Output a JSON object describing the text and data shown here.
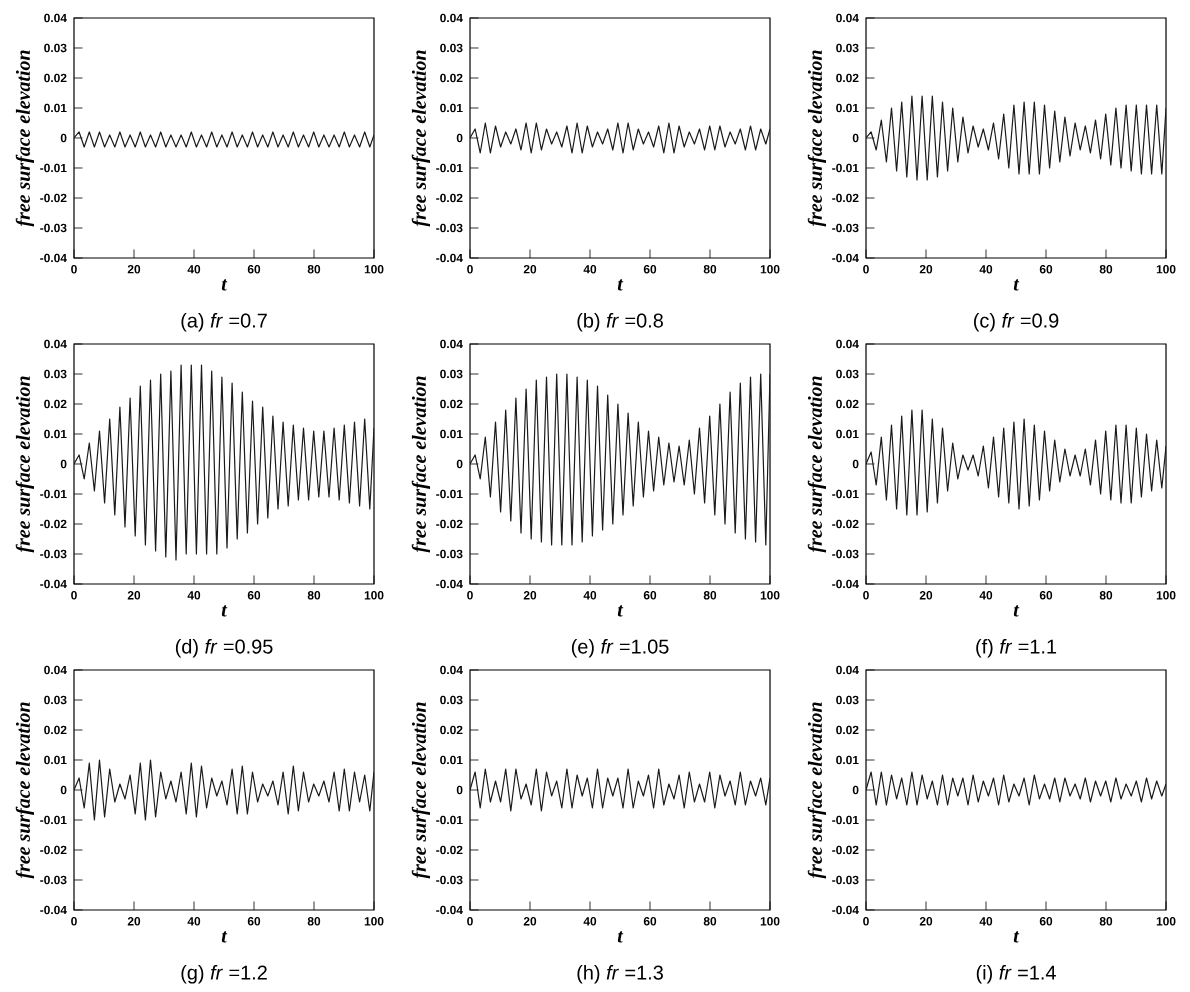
{
  "chart_data": [
    {
      "type": "line",
      "color": "#1a1a1a",
      "xlabel": "t",
      "ylabel": "free surface elevation",
      "annotations": [
        "(a) *fr* =0.7"
      ],
      "xlim": [
        0,
        100
      ],
      "ylim": [
        -0.04,
        0.04
      ],
      "xticks": [
        0,
        20,
        40,
        60,
        80,
        100
      ],
      "yticks": [
        -0.04,
        -0.03,
        -0.02,
        -0.01,
        0,
        0.01,
        0.02,
        0.03,
        0.04
      ],
      "x": [
        0,
        1.7,
        3.4,
        5.1,
        6.8,
        8.5,
        10.2,
        11.9,
        13.6,
        15.3,
        17,
        18.7,
        20.4,
        22.1,
        23.8,
        25.5,
        27.2,
        28.9,
        30.6,
        32.3,
        34,
        35.7,
        37.4,
        39.1,
        40.8,
        42.5,
        44.2,
        45.9,
        47.6,
        49.3,
        51,
        52.7,
        54.4,
        56.1,
        57.8,
        59.5,
        61.2,
        62.9,
        64.6,
        66.3,
        68,
        69.7,
        71.4,
        73.1,
        74.8,
        76.5,
        78.2,
        79.9,
        81.6,
        83.3,
        85,
        86.7,
        88.4,
        90.1,
        91.8,
        93.5,
        95.2,
        96.9,
        98.6,
        100
      ],
      "values": [
        0,
        0.002,
        -0.003,
        0.002,
        -0.003,
        0.002,
        -0.003,
        0.001,
        -0.003,
        0.002,
        -0.003,
        0.001,
        -0.003,
        0.002,
        -0.003,
        0.001,
        -0.003,
        0.002,
        -0.003,
        0.001,
        -0.003,
        0.001,
        -0.003,
        0.002,
        -0.003,
        0.001,
        -0.003,
        0.002,
        -0.003,
        0.001,
        -0.003,
        0.002,
        -0.003,
        0.001,
        -0.003,
        0.002,
        -0.003,
        0.001,
        -0.003,
        0.002,
        -0.003,
        0.001,
        -0.003,
        0.002,
        -0.003,
        0.001,
        -0.003,
        0.002,
        -0.003,
        0.001,
        -0.003,
        0.001,
        -0.003,
        0.002,
        -0.003,
        0.001,
        -0.003,
        0.002,
        -0.003,
        0.001
      ]
    },
    {
      "type": "line",
      "color": "#1a1a1a",
      "xlabel": "t",
      "ylabel": "free surface elevation",
      "annotations": [
        "(b) *fr* =0.8"
      ],
      "xlim": [
        0,
        100
      ],
      "ylim": [
        -0.04,
        0.04
      ],
      "xticks": [
        0,
        20,
        40,
        60,
        80,
        100
      ],
      "yticks": [
        -0.04,
        -0.03,
        -0.02,
        -0.01,
        0,
        0.01,
        0.02,
        0.03,
        0.04
      ],
      "x": [
        0,
        1.7,
        3.4,
        5.1,
        6.8,
        8.5,
        10.2,
        11.9,
        13.6,
        15.3,
        17,
        18.7,
        20.4,
        22.1,
        23.8,
        25.5,
        27.2,
        28.9,
        30.6,
        32.3,
        34,
        35.7,
        37.4,
        39.1,
        40.8,
        42.5,
        44.2,
        45.9,
        47.6,
        49.3,
        51,
        52.7,
        54.4,
        56.1,
        57.8,
        59.5,
        61.2,
        62.9,
        64.6,
        66.3,
        68,
        69.7,
        71.4,
        73.1,
        74.8,
        76.5,
        78.2,
        79.9,
        81.6,
        83.3,
        85,
        86.7,
        88.4,
        90.1,
        91.8,
        93.5,
        95.2,
        96.9,
        98.6,
        100
      ],
      "values": [
        0,
        0.003,
        -0.005,
        0.005,
        -0.005,
        0.004,
        -0.003,
        0.002,
        -0.002,
        0.003,
        -0.004,
        0.005,
        -0.005,
        0.005,
        -0.004,
        0.003,
        -0.002,
        0.002,
        -0.003,
        0.004,
        -0.005,
        0.005,
        -0.005,
        0.004,
        -0.003,
        0.002,
        -0.002,
        0.003,
        -0.004,
        0.005,
        -0.005,
        0.005,
        -0.004,
        0.003,
        -0.002,
        0.002,
        -0.003,
        0.004,
        -0.005,
        0.005,
        -0.005,
        0.004,
        -0.003,
        0.002,
        -0.002,
        0.003,
        -0.004,
        0.004,
        -0.004,
        0.004,
        -0.003,
        0.002,
        -0.002,
        0.003,
        -0.004,
        0.004,
        -0.004,
        0.003,
        -0.002,
        0.003
      ]
    },
    {
      "type": "line",
      "color": "#1a1a1a",
      "xlabel": "t",
      "ylabel": "free surface elevation",
      "annotations": [
        "(c) *fr* =0.9"
      ],
      "xlim": [
        0,
        100
      ],
      "ylim": [
        -0.04,
        0.04
      ],
      "xticks": [
        0,
        20,
        40,
        60,
        80,
        100
      ],
      "yticks": [
        -0.04,
        -0.03,
        -0.02,
        -0.01,
        0,
        0.01,
        0.02,
        0.03,
        0.04
      ],
      "x": [
        0,
        1.7,
        3.4,
        5.1,
        6.8,
        8.5,
        10.2,
        11.9,
        13.6,
        15.3,
        17,
        18.7,
        20.4,
        22.1,
        23.8,
        25.5,
        27.2,
        28.9,
        30.6,
        32.3,
        34,
        35.7,
        37.4,
        39.1,
        40.8,
        42.5,
        44.2,
        45.9,
        47.6,
        49.3,
        51,
        52.7,
        54.4,
        56.1,
        57.8,
        59.5,
        61.2,
        62.9,
        64.6,
        66.3,
        68,
        69.7,
        71.4,
        73.1,
        74.8,
        76.5,
        78.2,
        79.9,
        81.6,
        83.3,
        85,
        86.7,
        88.4,
        90.1,
        91.8,
        93.5,
        95.2,
        96.9,
        98.6,
        100
      ],
      "values": [
        0,
        0.002,
        -0.004,
        0.006,
        -0.008,
        0.01,
        -0.011,
        0.012,
        -0.013,
        0.014,
        -0.014,
        0.014,
        -0.014,
        0.014,
        -0.013,
        0.012,
        -0.011,
        0.01,
        -0.008,
        0.007,
        -0.005,
        0.004,
        -0.003,
        0.003,
        -0.004,
        0.005,
        -0.007,
        0.008,
        -0.01,
        0.011,
        -0.012,
        0.012,
        -0.012,
        0.012,
        -0.012,
        0.011,
        -0.01,
        0.009,
        -0.008,
        0.007,
        -0.006,
        0.005,
        -0.004,
        0.004,
        -0.005,
        0.006,
        -0.007,
        0.008,
        -0.009,
        0.01,
        -0.01,
        0.011,
        -0.011,
        0.011,
        -0.012,
        0.011,
        -0.012,
        0.011,
        -0.012,
        0.01
      ]
    },
    {
      "type": "line",
      "color": "#1a1a1a",
      "xlabel": "t",
      "ylabel": "free surface elevation",
      "annotations": [
        "(d) *fr* =0.95"
      ],
      "xlim": [
        0,
        100
      ],
      "ylim": [
        -0.04,
        0.04
      ],
      "xticks": [
        0,
        20,
        40,
        60,
        80,
        100
      ],
      "yticks": [
        -0.04,
        -0.03,
        -0.02,
        -0.01,
        0,
        0.01,
        0.02,
        0.03,
        0.04
      ],
      "x": [
        0,
        1.7,
        3.4,
        5.1,
        6.8,
        8.5,
        10.2,
        11.9,
        13.6,
        15.3,
        17,
        18.7,
        20.4,
        22.1,
        23.8,
        25.5,
        27.2,
        28.9,
        30.6,
        32.3,
        34,
        35.7,
        37.4,
        39.1,
        40.8,
        42.5,
        44.2,
        45.9,
        47.6,
        49.3,
        51,
        52.7,
        54.4,
        56.1,
        57.8,
        59.5,
        61.2,
        62.9,
        64.6,
        66.3,
        68,
        69.7,
        71.4,
        73.1,
        74.8,
        76.5,
        78.2,
        79.9,
        81.6,
        83.3,
        85,
        86.7,
        88.4,
        90.1,
        91.8,
        93.5,
        95.2,
        96.9,
        98.6,
        100
      ],
      "values": [
        0,
        0.003,
        -0.005,
        0.007,
        -0.009,
        0.011,
        -0.013,
        0.015,
        -0.017,
        0.019,
        -0.021,
        0.022,
        -0.024,
        0.026,
        -0.027,
        0.028,
        -0.029,
        0.03,
        -0.031,
        0.031,
        -0.032,
        0.033,
        -0.03,
        0.033,
        -0.03,
        0.033,
        -0.03,
        0.031,
        -0.03,
        0.029,
        -0.028,
        0.027,
        -0.025,
        0.024,
        -0.023,
        0.021,
        -0.02,
        0.019,
        -0.018,
        0.016,
        -0.015,
        0.014,
        -0.014,
        0.013,
        -0.012,
        0.012,
        -0.012,
        0.011,
        -0.011,
        0.011,
        -0.011,
        0.012,
        -0.012,
        0.013,
        -0.013,
        0.014,
        -0.014,
        0.015,
        -0.015,
        0.012
      ]
    },
    {
      "type": "line",
      "color": "#1a1a1a",
      "xlabel": "t",
      "ylabel": "free surface elevation",
      "annotations": [
        "(e) *fr* =1.05"
      ],
      "xlim": [
        0,
        100
      ],
      "ylim": [
        -0.04,
        0.04
      ],
      "xticks": [
        0,
        20,
        40,
        60,
        80,
        100
      ],
      "yticks": [
        -0.04,
        -0.03,
        -0.02,
        -0.01,
        0,
        0.01,
        0.02,
        0.03,
        0.04
      ],
      "x": [
        0,
        1.7,
        3.4,
        5.1,
        6.8,
        8.5,
        10.2,
        11.9,
        13.6,
        15.3,
        17,
        18.7,
        20.4,
        22.1,
        23.8,
        25.5,
        27.2,
        28.9,
        30.6,
        32.3,
        34,
        35.7,
        37.4,
        39.1,
        40.8,
        42.5,
        44.2,
        45.9,
        47.6,
        49.3,
        51,
        52.7,
        54.4,
        56.1,
        57.8,
        59.5,
        61.2,
        62.9,
        64.6,
        66.3,
        68,
        69.7,
        71.4,
        73.1,
        74.8,
        76.5,
        78.2,
        79.9,
        81.6,
        83.3,
        85,
        86.7,
        88.4,
        90.1,
        91.8,
        93.5,
        95.2,
        96.9,
        98.6,
        100
      ],
      "values": [
        0,
        0.003,
        -0.005,
        0.009,
        -0.011,
        0.014,
        -0.016,
        0.018,
        -0.019,
        0.022,
        -0.023,
        0.025,
        -0.025,
        0.028,
        -0.026,
        0.029,
        -0.027,
        0.03,
        -0.027,
        0.03,
        -0.027,
        0.029,
        -0.026,
        0.028,
        -0.024,
        0.026,
        -0.022,
        0.023,
        -0.02,
        0.02,
        -0.017,
        0.017,
        -0.014,
        0.014,
        -0.011,
        0.011,
        -0.009,
        0.009,
        -0.007,
        0.007,
        -0.006,
        0.006,
        -0.007,
        0.008,
        -0.01,
        0.012,
        -0.013,
        0.016,
        -0.017,
        0.02,
        -0.02,
        0.024,
        -0.023,
        0.027,
        -0.025,
        0.029,
        -0.026,
        0.03,
        -0.027,
        0.03
      ]
    },
    {
      "type": "line",
      "color": "#1a1a1a",
      "xlabel": "t",
      "ylabel": "free surface elevation",
      "annotations": [
        "(f) *fr* =1.1"
      ],
      "xlim": [
        0,
        100
      ],
      "ylim": [
        -0.04,
        0.04
      ],
      "xticks": [
        0,
        20,
        40,
        60,
        80,
        100
      ],
      "yticks": [
        -0.04,
        -0.03,
        -0.02,
        -0.01,
        0,
        0.01,
        0.02,
        0.03,
        0.04
      ],
      "x": [
        0,
        1.7,
        3.4,
        5.1,
        6.8,
        8.5,
        10.2,
        11.9,
        13.6,
        15.3,
        17,
        18.7,
        20.4,
        22.1,
        23.8,
        25.5,
        27.2,
        28.9,
        30.6,
        32.3,
        34,
        35.7,
        37.4,
        39.1,
        40.8,
        42.5,
        44.2,
        45.9,
        47.6,
        49.3,
        51,
        52.7,
        54.4,
        56.1,
        57.8,
        59.5,
        61.2,
        62.9,
        64.6,
        66.3,
        68,
        69.7,
        71.4,
        73.1,
        74.8,
        76.5,
        78.2,
        79.9,
        81.6,
        83.3,
        85,
        86.7,
        88.4,
        90.1,
        91.8,
        93.5,
        95.2,
        96.9,
        98.6,
        100
      ],
      "values": [
        0,
        0.004,
        -0.007,
        0.009,
        -0.012,
        0.013,
        -0.015,
        0.016,
        -0.017,
        0.018,
        -0.017,
        0.018,
        -0.016,
        0.015,
        -0.013,
        0.012,
        -0.009,
        0.007,
        -0.005,
        0.003,
        -0.002,
        0.003,
        -0.004,
        0.006,
        -0.008,
        0.009,
        -0.011,
        0.012,
        -0.013,
        0.014,
        -0.015,
        0.015,
        -0.014,
        0.013,
        -0.012,
        0.011,
        -0.009,
        0.008,
        -0.006,
        0.005,
        -0.004,
        0.003,
        -0.004,
        0.005,
        -0.007,
        0.008,
        -0.01,
        0.011,
        -0.012,
        0.013,
        -0.013,
        0.013,
        -0.013,
        0.012,
        -0.011,
        0.01,
        -0.009,
        0.008,
        -0.008,
        0.006
      ]
    },
    {
      "type": "line",
      "color": "#1a1a1a",
      "xlabel": "t",
      "ylabel": "free surface elevation",
      "annotations": [
        "(g) *fr* =1.2"
      ],
      "xlim": [
        0,
        100
      ],
      "ylim": [
        -0.04,
        0.04
      ],
      "xticks": [
        0,
        20,
        40,
        60,
        80,
        100
      ],
      "yticks": [
        -0.04,
        -0.03,
        -0.02,
        -0.01,
        0,
        0.01,
        0.02,
        0.03,
        0.04
      ],
      "x": [
        0,
        1.7,
        3.4,
        5.1,
        6.8,
        8.5,
        10.2,
        11.9,
        13.6,
        15.3,
        17,
        18.7,
        20.4,
        22.1,
        23.8,
        25.5,
        27.2,
        28.9,
        30.6,
        32.3,
        34,
        35.7,
        37.4,
        39.1,
        40.8,
        42.5,
        44.2,
        45.9,
        47.6,
        49.3,
        51,
        52.7,
        54.4,
        56.1,
        57.8,
        59.5,
        61.2,
        62.9,
        64.6,
        66.3,
        68,
        69.7,
        71.4,
        73.1,
        74.8,
        76.5,
        78.2,
        79.9,
        81.6,
        83.3,
        85,
        86.7,
        88.4,
        90.1,
        91.8,
        93.5,
        95.2,
        96.9,
        98.6,
        100
      ],
      "values": [
        0,
        0.004,
        -0.006,
        0.009,
        -0.01,
        0.01,
        -0.009,
        0.007,
        -0.004,
        0.002,
        -0.003,
        0.005,
        -0.008,
        0.009,
        -0.01,
        0.01,
        -0.009,
        0.006,
        -0.003,
        0.003,
        -0.004,
        0.006,
        -0.008,
        0.009,
        -0.009,
        0.008,
        -0.006,
        0.004,
        -0.002,
        0.003,
        -0.005,
        0.007,
        -0.008,
        0.008,
        -0.008,
        0.006,
        -0.004,
        0.002,
        -0.002,
        0.003,
        -0.005,
        0.006,
        -0.008,
        0.008,
        -0.007,
        0.006,
        -0.004,
        0.002,
        -0.002,
        0.003,
        -0.004,
        0.006,
        -0.007,
        0.007,
        -0.007,
        0.006,
        -0.004,
        0.005,
        -0.007,
        0.006
      ]
    },
    {
      "type": "line",
      "color": "#1a1a1a",
      "xlabel": "t",
      "ylabel": "free surface elevation",
      "annotations": [
        "(h) *fr* =1.3"
      ],
      "xlim": [
        0,
        100
      ],
      "ylim": [
        -0.04,
        0.04
      ],
      "xticks": [
        0,
        20,
        40,
        60,
        80,
        100
      ],
      "yticks": [
        -0.04,
        -0.03,
        -0.02,
        -0.01,
        0,
        0.01,
        0.02,
        0.03,
        0.04
      ],
      "x": [
        0,
        1.7,
        3.4,
        5.1,
        6.8,
        8.5,
        10.2,
        11.9,
        13.6,
        15.3,
        17,
        18.7,
        20.4,
        22.1,
        23.8,
        25.5,
        27.2,
        28.9,
        30.6,
        32.3,
        34,
        35.7,
        37.4,
        39.1,
        40.8,
        42.5,
        44.2,
        45.9,
        47.6,
        49.3,
        51,
        52.7,
        54.4,
        56.1,
        57.8,
        59.5,
        61.2,
        62.9,
        64.6,
        66.3,
        68,
        69.7,
        71.4,
        73.1,
        74.8,
        76.5,
        78.2,
        79.9,
        81.6,
        83.3,
        85,
        86.7,
        88.4,
        90.1,
        91.8,
        93.5,
        95.2,
        96.9,
        98.6,
        100
      ],
      "values": [
        0,
        0.006,
        -0.006,
        0.007,
        -0.004,
        0.003,
        -0.004,
        0.007,
        -0.007,
        0.007,
        -0.003,
        0.002,
        -0.005,
        0.007,
        -0.007,
        0.006,
        -0.002,
        0.003,
        -0.006,
        0.007,
        -0.006,
        0.005,
        -0.002,
        0.004,
        -0.006,
        0.007,
        -0.006,
        0.004,
        -0.002,
        0.004,
        -0.006,
        0.007,
        -0.006,
        0.003,
        -0.002,
        0.005,
        -0.006,
        0.007,
        -0.005,
        0.002,
        -0.003,
        0.005,
        -0.006,
        0.006,
        -0.004,
        0.002,
        -0.004,
        0.006,
        -0.006,
        0.005,
        -0.002,
        0.003,
        -0.005,
        0.006,
        -0.005,
        0.003,
        -0.002,
        0.004,
        -0.005,
        0.004
      ]
    },
    {
      "type": "line",
      "color": "#1a1a1a",
      "xlabel": "t",
      "ylabel": "free surface elevation",
      "annotations": [
        "(i) *fr* =1.4"
      ],
      "xlim": [
        0,
        100
      ],
      "ylim": [
        -0.04,
        0.04
      ],
      "xticks": [
        0,
        20,
        40,
        60,
        80,
        100
      ],
      "yticks": [
        -0.04,
        -0.03,
        -0.02,
        -0.01,
        0,
        0.01,
        0.02,
        0.03,
        0.04
      ],
      "x": [
        0,
        1.7,
        3.4,
        5.1,
        6.8,
        8.5,
        10.2,
        11.9,
        13.6,
        15.3,
        17,
        18.7,
        20.4,
        22.1,
        23.8,
        25.5,
        27.2,
        28.9,
        30.6,
        32.3,
        34,
        35.7,
        37.4,
        39.1,
        40.8,
        42.5,
        44.2,
        45.9,
        47.6,
        49.3,
        51,
        52.7,
        54.4,
        56.1,
        57.8,
        59.5,
        61.2,
        62.9,
        64.6,
        66.3,
        68,
        69.7,
        71.4,
        73.1,
        74.8,
        76.5,
        78.2,
        79.9,
        81.6,
        83.3,
        85,
        86.7,
        88.4,
        90.1,
        91.8,
        93.5,
        95.2,
        96.9,
        98.6,
        100
      ],
      "values": [
        0,
        0.006,
        -0.005,
        0.006,
        -0.005,
        0.005,
        -0.003,
        0.004,
        -0.005,
        0.006,
        -0.005,
        0.005,
        -0.003,
        0.003,
        -0.005,
        0.005,
        -0.005,
        0.004,
        -0.002,
        0.004,
        -0.005,
        0.005,
        -0.004,
        0.003,
        -0.002,
        0.004,
        -0.005,
        0.005,
        -0.004,
        0.002,
        -0.002,
        0.004,
        -0.005,
        0.005,
        -0.003,
        0.002,
        -0.003,
        0.004,
        -0.004,
        0.004,
        -0.002,
        0.002,
        -0.003,
        0.004,
        -0.004,
        0.003,
        -0.002,
        0.003,
        -0.004,
        0.004,
        -0.003,
        0.002,
        -0.002,
        0.003,
        -0.004,
        0.004,
        -0.003,
        0.003,
        -0.002,
        0.002
      ]
    }
  ]
}
